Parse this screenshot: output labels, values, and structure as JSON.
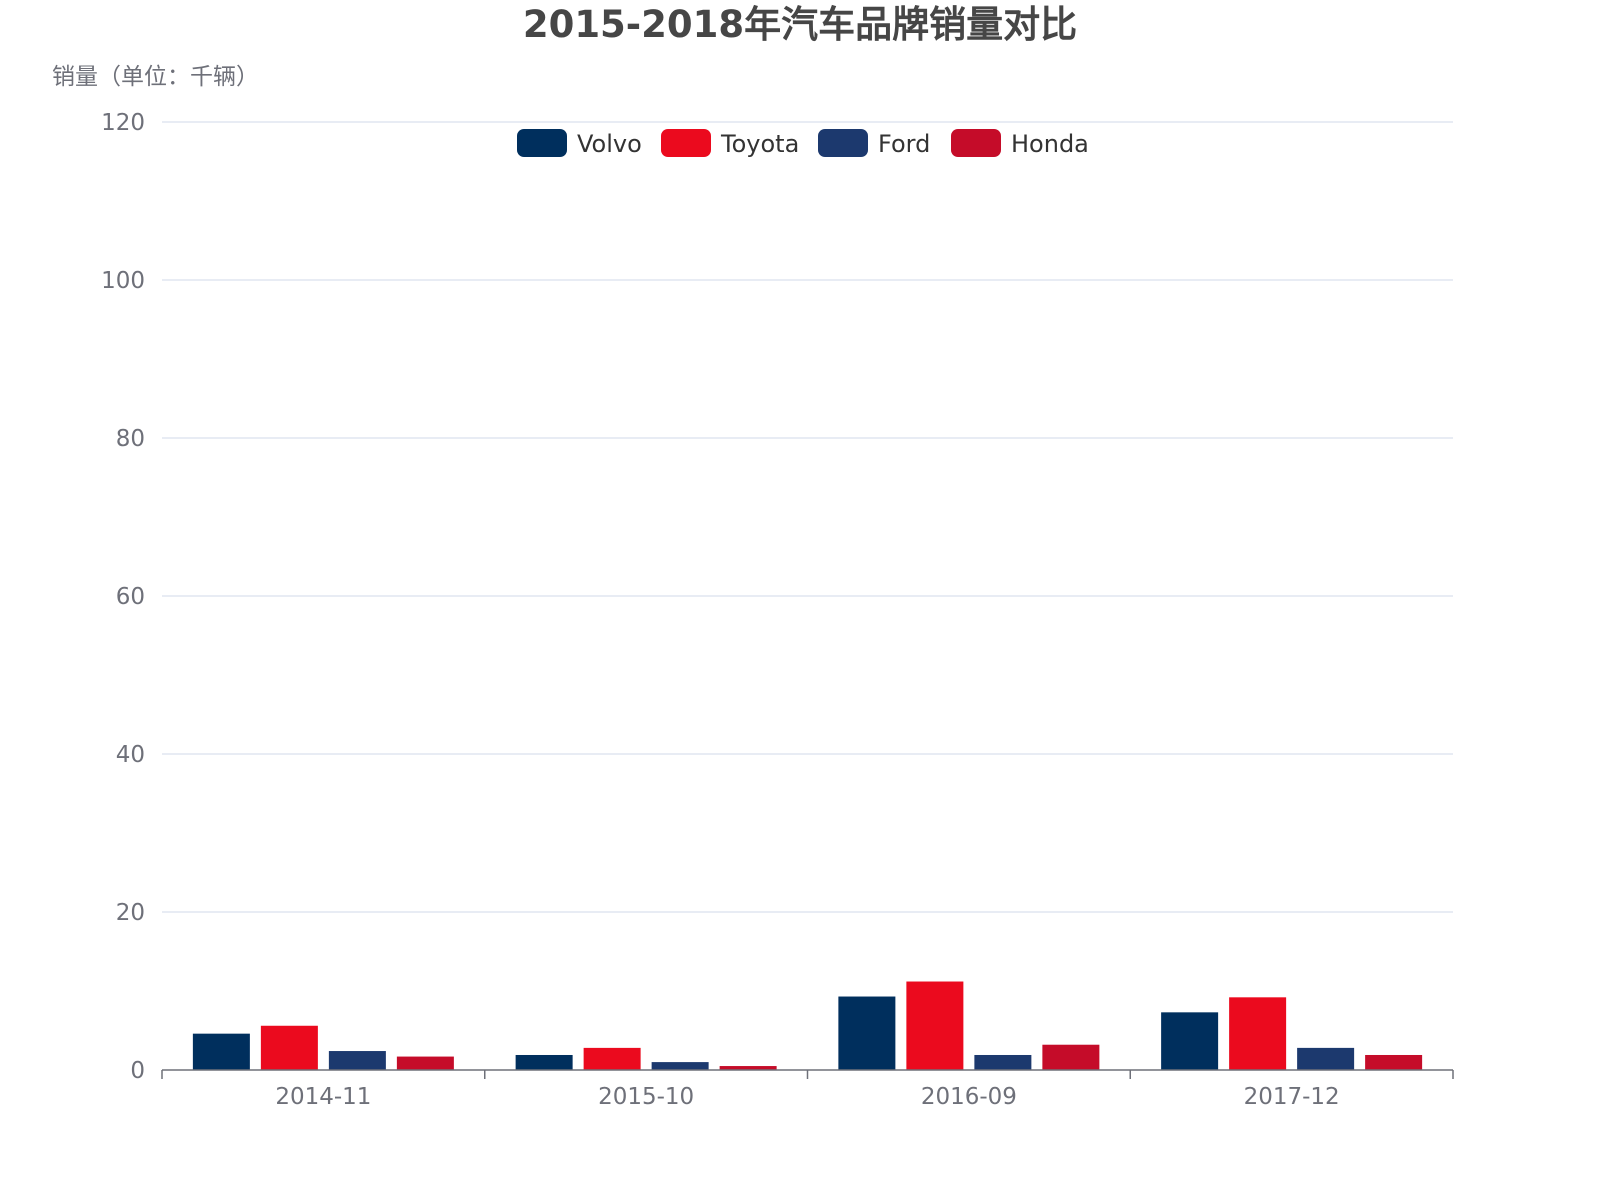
{
  "chart_data": {
    "type": "bar",
    "title": "2015-2018年汽车品牌销量对比",
    "ylabel": "销量（单位：千辆）",
    "xlabel": "",
    "categories": [
      "2014-11",
      "2015-10",
      "2016-09",
      "2017-12"
    ],
    "series": [
      {
        "name": "Volvo",
        "color": "#002f5d",
        "values": [
          4.6,
          1.9,
          9.3,
          7.3
        ]
      },
      {
        "name": "Toyota",
        "color": "#eb0a1e",
        "values": [
          5.6,
          2.8,
          11.2,
          9.2
        ]
      },
      {
        "name": "Ford",
        "color": "#1c396e",
        "values": [
          2.4,
          1.0,
          1.9,
          2.8
        ]
      },
      {
        "name": "Honda",
        "color": "#c50c29",
        "values": [
          1.7,
          0.5,
          3.2,
          1.9
        ]
      }
    ],
    "ylim": [
      0,
      120
    ],
    "yticks": [
      0,
      20,
      40,
      60,
      80,
      100,
      120
    ],
    "grid": true,
    "legend_position": "top-center"
  }
}
